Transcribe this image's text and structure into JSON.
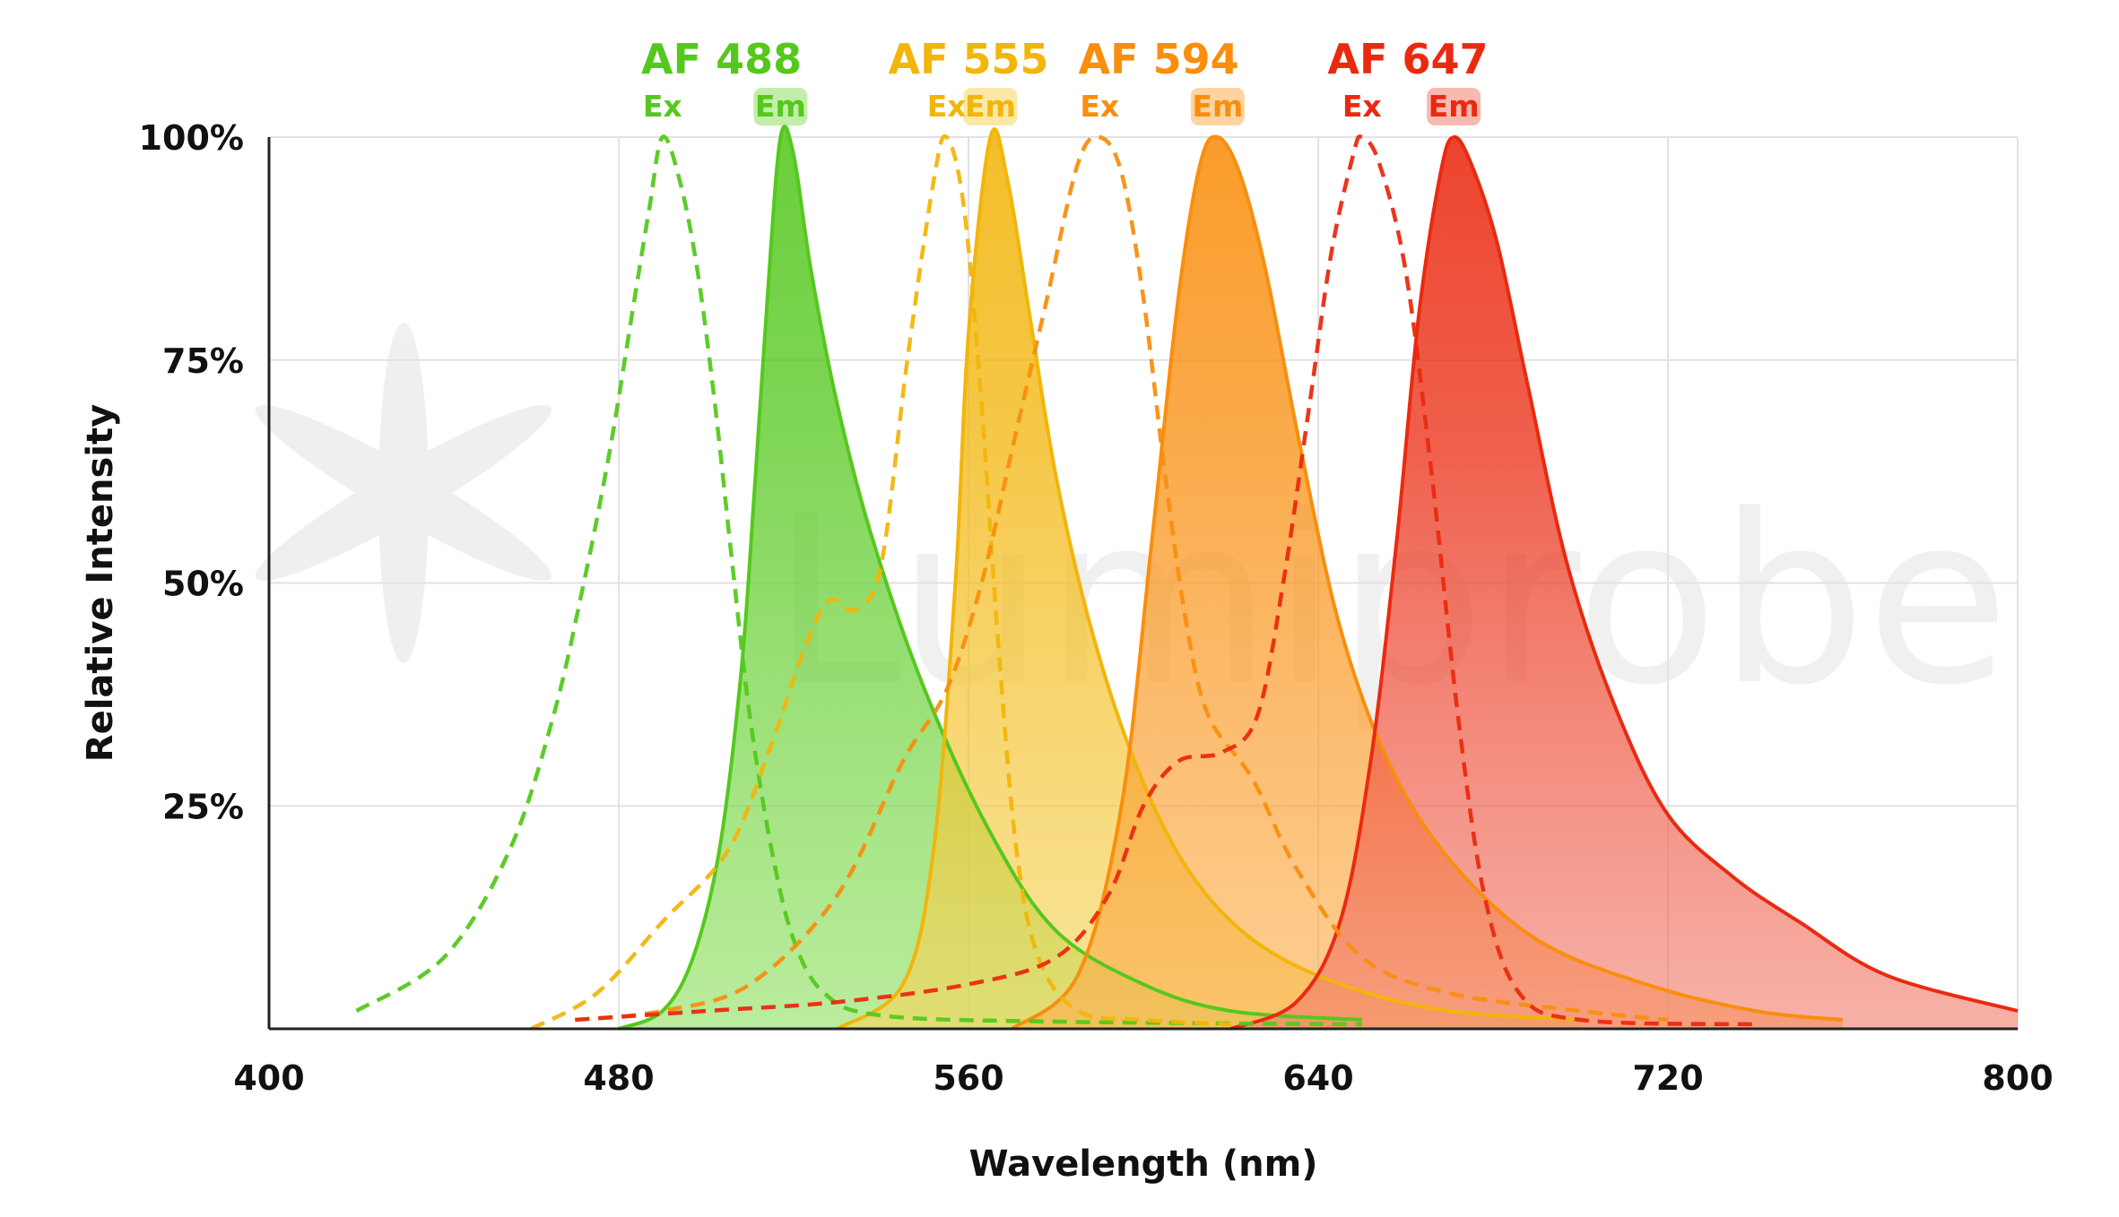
{
  "chart_data": {
    "type": "area",
    "xlabel": "Wavelength (nm)",
    "ylabel": "Relative Intensity",
    "xlim": [
      400,
      800
    ],
    "ylim": [
      0,
      100
    ],
    "x_ticks": [
      {
        "value": 400,
        "label": "400"
      },
      {
        "value": 480,
        "label": "480"
      },
      {
        "value": 560,
        "label": "560"
      },
      {
        "value": 640,
        "label": "640"
      },
      {
        "value": 720,
        "label": "720"
      },
      {
        "value": 800,
        "label": "800"
      }
    ],
    "y_ticks": [
      {
        "value": 25,
        "label": "25%"
      },
      {
        "value": 50,
        "label": "50%"
      },
      {
        "value": 75,
        "label": "75%"
      },
      {
        "value": 100,
        "label": "100%"
      }
    ],
    "grid": true,
    "watermark": "Lumiprobe",
    "dyes": [
      {
        "name": "AF 488",
        "ex_label": "Ex",
        "em_label": "Em",
        "color": "#55c81e",
        "fill": "#8fe060",
        "ex": {
          "peak": 490,
          "values": [
            [
              420,
              2
            ],
            [
              440,
              8
            ],
            [
              455,
              20
            ],
            [
              465,
              35
            ],
            [
              472,
              50
            ],
            [
              478,
              65
            ],
            [
              483,
              80
            ],
            [
              487,
              92
            ],
            [
              490,
              100
            ],
            [
              494,
              95
            ],
            [
              498,
              85
            ],
            [
              502,
              70
            ],
            [
              506,
              52
            ],
            [
              510,
              35
            ],
            [
              515,
              20
            ],
            [
              520,
              10
            ],
            [
              527,
              4
            ],
            [
              540,
              1.5
            ],
            [
              580,
              0.8
            ],
            [
              650,
              0.5
            ]
          ]
        },
        "em": {
          "peak": 517,
          "values": [
            [
              480,
              0
            ],
            [
              490,
              2
            ],
            [
              497,
              8
            ],
            [
              503,
              20
            ],
            [
              508,
              40
            ],
            [
              511,
              60
            ],
            [
              514,
              82
            ],
            [
              517,
              100
            ],
            [
              520,
              98
            ],
            [
              524,
              85
            ],
            [
              530,
              70
            ],
            [
              538,
              55
            ],
            [
              550,
              38
            ],
            [
              565,
              22
            ],
            [
              580,
              11
            ],
            [
              600,
              5
            ],
            [
              620,
              2
            ],
            [
              650,
              1
            ]
          ]
        }
      },
      {
        "name": "AF 555",
        "ex_label": "Ex",
        "em_label": "Em",
        "color": "#f2b50a",
        "fill": "#f7d55c",
        "ex": {
          "peak": 555,
          "values": [
            [
              460,
              0
            ],
            [
              475,
              4
            ],
            [
              490,
              12
            ],
            [
              505,
              20
            ],
            [
              515,
              32
            ],
            [
              522,
              42
            ],
            [
              528,
              48
            ],
            [
              534,
              47
            ],
            [
              540,
              52
            ],
            [
              546,
              75
            ],
            [
              552,
              95
            ],
            [
              555,
              100
            ],
            [
              559,
              92
            ],
            [
              563,
              70
            ],
            [
              567,
              42
            ],
            [
              571,
              20
            ],
            [
              576,
              8
            ],
            [
              585,
              2
            ],
            [
              600,
              1
            ],
            [
              620,
              0.5
            ]
          ]
        },
        "em": {
          "peak": 565,
          "values": [
            [
              530,
              0
            ],
            [
              545,
              5
            ],
            [
              552,
              20
            ],
            [
              557,
              50
            ],
            [
              560,
              78
            ],
            [
              565,
              100
            ],
            [
              569,
              95
            ],
            [
              574,
              80
            ],
            [
              580,
              62
            ],
            [
              588,
              45
            ],
            [
              598,
              30
            ],
            [
              610,
              18
            ],
            [
              625,
              10
            ],
            [
              645,
              5
            ],
            [
              670,
              2
            ],
            [
              700,
              1
            ]
          ]
        }
      },
      {
        "name": "AF 594",
        "ex_label": "Ex",
        "em_label": "Em",
        "color": "#f98e0e",
        "fill": "#fcb050",
        "ex": {
          "peak": 590,
          "values": [
            [
              470,
              1
            ],
            [
              490,
              2
            ],
            [
              510,
              5
            ],
            [
              530,
              15
            ],
            [
              545,
              30
            ],
            [
              555,
              38
            ],
            [
              563,
              50
            ],
            [
              570,
              65
            ],
            [
              578,
              82
            ],
            [
              585,
              97
            ],
            [
              590,
              100
            ],
            [
              595,
              96
            ],
            [
              600,
              82
            ],
            [
              605,
              62
            ],
            [
              610,
              45
            ],
            [
              615,
              35
            ],
            [
              625,
              28
            ],
            [
              635,
              18
            ],
            [
              650,
              8
            ],
            [
              670,
              4
            ],
            [
              700,
              2
            ],
            [
              720,
              1
            ]
          ]
        },
        "em": {
          "peak": 617,
          "values": [
            [
              570,
              0
            ],
            [
              585,
              6
            ],
            [
              595,
              25
            ],
            [
              602,
              55
            ],
            [
              608,
              82
            ],
            [
              613,
              97
            ],
            [
              617,
              100
            ],
            [
              622,
              96
            ],
            [
              628,
              85
            ],
            [
              636,
              65
            ],
            [
              645,
              45
            ],
            [
              656,
              30
            ],
            [
              670,
              19
            ],
            [
              690,
              10
            ],
            [
              715,
              5
            ],
            [
              740,
              2
            ],
            [
              760,
              1
            ]
          ]
        }
      },
      {
        "name": "AF 647",
        "ex_label": "Ex",
        "em_label": "Em",
        "color": "#ea2a10",
        "fill": "#f28070",
        "ex": {
          "peak": 650,
          "values": [
            [
              470,
              1
            ],
            [
              500,
              2
            ],
            [
              530,
              3
            ],
            [
              560,
              5
            ],
            [
              580,
              8
            ],
            [
              592,
              15
            ],
            [
              600,
              25
            ],
            [
              608,
              30
            ],
            [
              618,
              31
            ],
            [
              626,
              35
            ],
            [
              632,
              50
            ],
            [
              638,
              70
            ],
            [
              643,
              87
            ],
            [
              648,
              98
            ],
            [
              650,
              100
            ],
            [
              654,
              97
            ],
            [
              660,
              85
            ],
            [
              666,
              62
            ],
            [
              672,
              35
            ],
            [
              678,
              15
            ],
            [
              686,
              4
            ],
            [
              700,
              1
            ],
            [
              740,
              0.5
            ]
          ]
        },
        "em": {
          "peak": 671,
          "values": [
            [
              620,
              0
            ],
            [
              635,
              3
            ],
            [
              645,
              12
            ],
            [
              652,
              30
            ],
            [
              658,
              55
            ],
            [
              663,
              80
            ],
            [
              668,
              96
            ],
            [
              671,
              100
            ],
            [
              675,
              97
            ],
            [
              681,
              88
            ],
            [
              688,
              72
            ],
            [
              697,
              52
            ],
            [
              708,
              36
            ],
            [
              720,
              24
            ],
            [
              735,
              17
            ],
            [
              750,
              12
            ],
            [
              770,
              6
            ],
            [
              800,
              2
            ]
          ]
        }
      }
    ]
  }
}
